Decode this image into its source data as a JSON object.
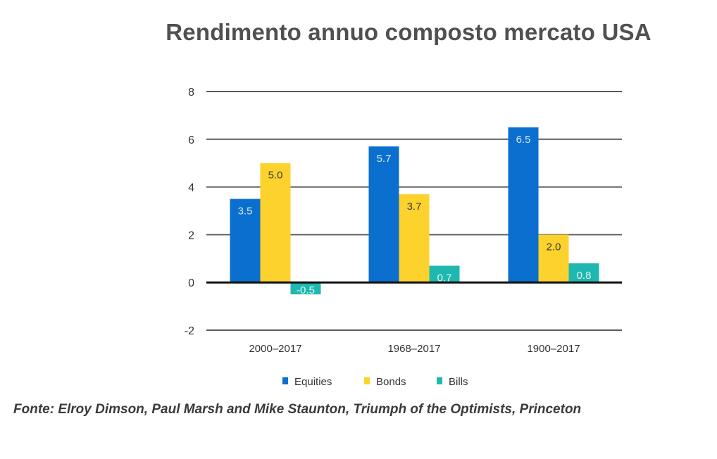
{
  "title": "Rendimento annuo composto mercato USA",
  "source": "Fonte: Elroy Dimson, Paul Marsh and Mike Staunton, Triumph of the Optimists, Princeton",
  "chart_data": {
    "type": "bar",
    "title": "Rendimento annuo composto mercato USA",
    "xlabel": "",
    "ylabel": "",
    "categories": [
      "2000–2017",
      "1968–2017",
      "1900–2017"
    ],
    "series": [
      {
        "name": "Equities",
        "color": "#0a6fce",
        "values": [
          3.5,
          5.7,
          6.5
        ],
        "labels": [
          "3.5",
          "5.7",
          "6.5"
        ],
        "label_color": "#dbe8f7"
      },
      {
        "name": "Bonds",
        "color": "#fdd22c",
        "values": [
          5.0,
          3.7,
          2.0
        ],
        "labels": [
          "5.0",
          "3.7",
          "2.0"
        ],
        "label_color": "#3a3a3a"
      },
      {
        "name": "Bills",
        "color": "#1fb8b0",
        "values": [
          -0.5,
          0.7,
          0.8
        ],
        "labels": [
          "-0.5",
          "0.7",
          "0.8"
        ],
        "label_color": "#e3f5f4"
      }
    ],
    "ylim": [
      -2,
      8
    ],
    "yticks": [
      "-2",
      "0",
      "2",
      "4",
      "6",
      "8"
    ],
    "grid": true,
    "legend_position": "bottom"
  }
}
